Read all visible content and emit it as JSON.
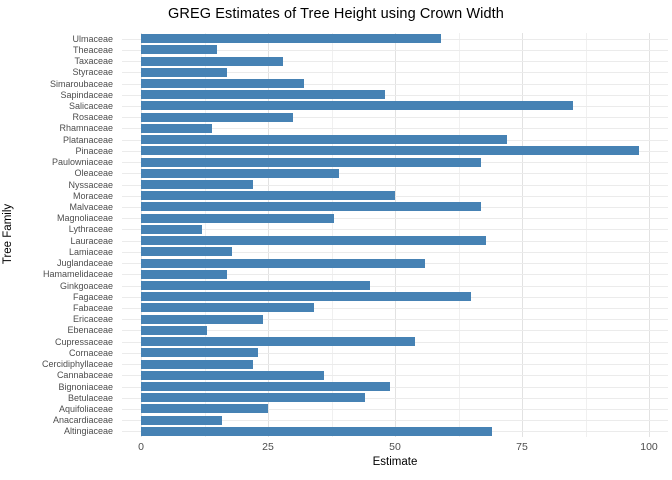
{
  "chart_data": {
    "type": "bar",
    "orientation": "horizontal",
    "title": "GREG Estimates of Tree Height using Crown Width",
    "xlabel": "Estimate",
    "ylabel": "Tree Family",
    "xlim": [
      0,
      100
    ],
    "x_ticks": [
      0,
      25,
      50,
      75,
      100
    ],
    "grid": "on",
    "legend": "none",
    "bar_color": "#4682B4",
    "background_color": "#FFFFFF",
    "categories": [
      "Ulmaceae",
      "Theaceae",
      "Taxaceae",
      "Styraceae",
      "Simaroubaceae",
      "Sapindaceae",
      "Salicaceae",
      "Rosaceae",
      "Rhamnaceae",
      "Platanaceae",
      "Pinaceae",
      "Paulowniaceae",
      "Oleaceae",
      "Nyssaceae",
      "Moraceae",
      "Malvaceae",
      "Magnoliaceae",
      "Lythraceae",
      "Lauraceae",
      "Lamiaceae",
      "Juglandaceae",
      "Hamamelidaceae",
      "Ginkgoaceae",
      "Fagaceae",
      "Fabaceae",
      "Ericaceae",
      "Ebenaceae",
      "Cupressaceae",
      "Cornaceae",
      "Cercidiphyllaceae",
      "Cannabaceae",
      "Bignoniaceae",
      "Betulaceae",
      "Aquifoliaceae",
      "Anacardiaceae",
      "Altingiaceae"
    ],
    "values": [
      59,
      15,
      28,
      17,
      32,
      48,
      85,
      30,
      14,
      72,
      98,
      67,
      39,
      22,
      50,
      67,
      38,
      12,
      68,
      18,
      56,
      17,
      45,
      65,
      34,
      24,
      13,
      54,
      23,
      22,
      36,
      49,
      44,
      25,
      16,
      69
    ]
  }
}
